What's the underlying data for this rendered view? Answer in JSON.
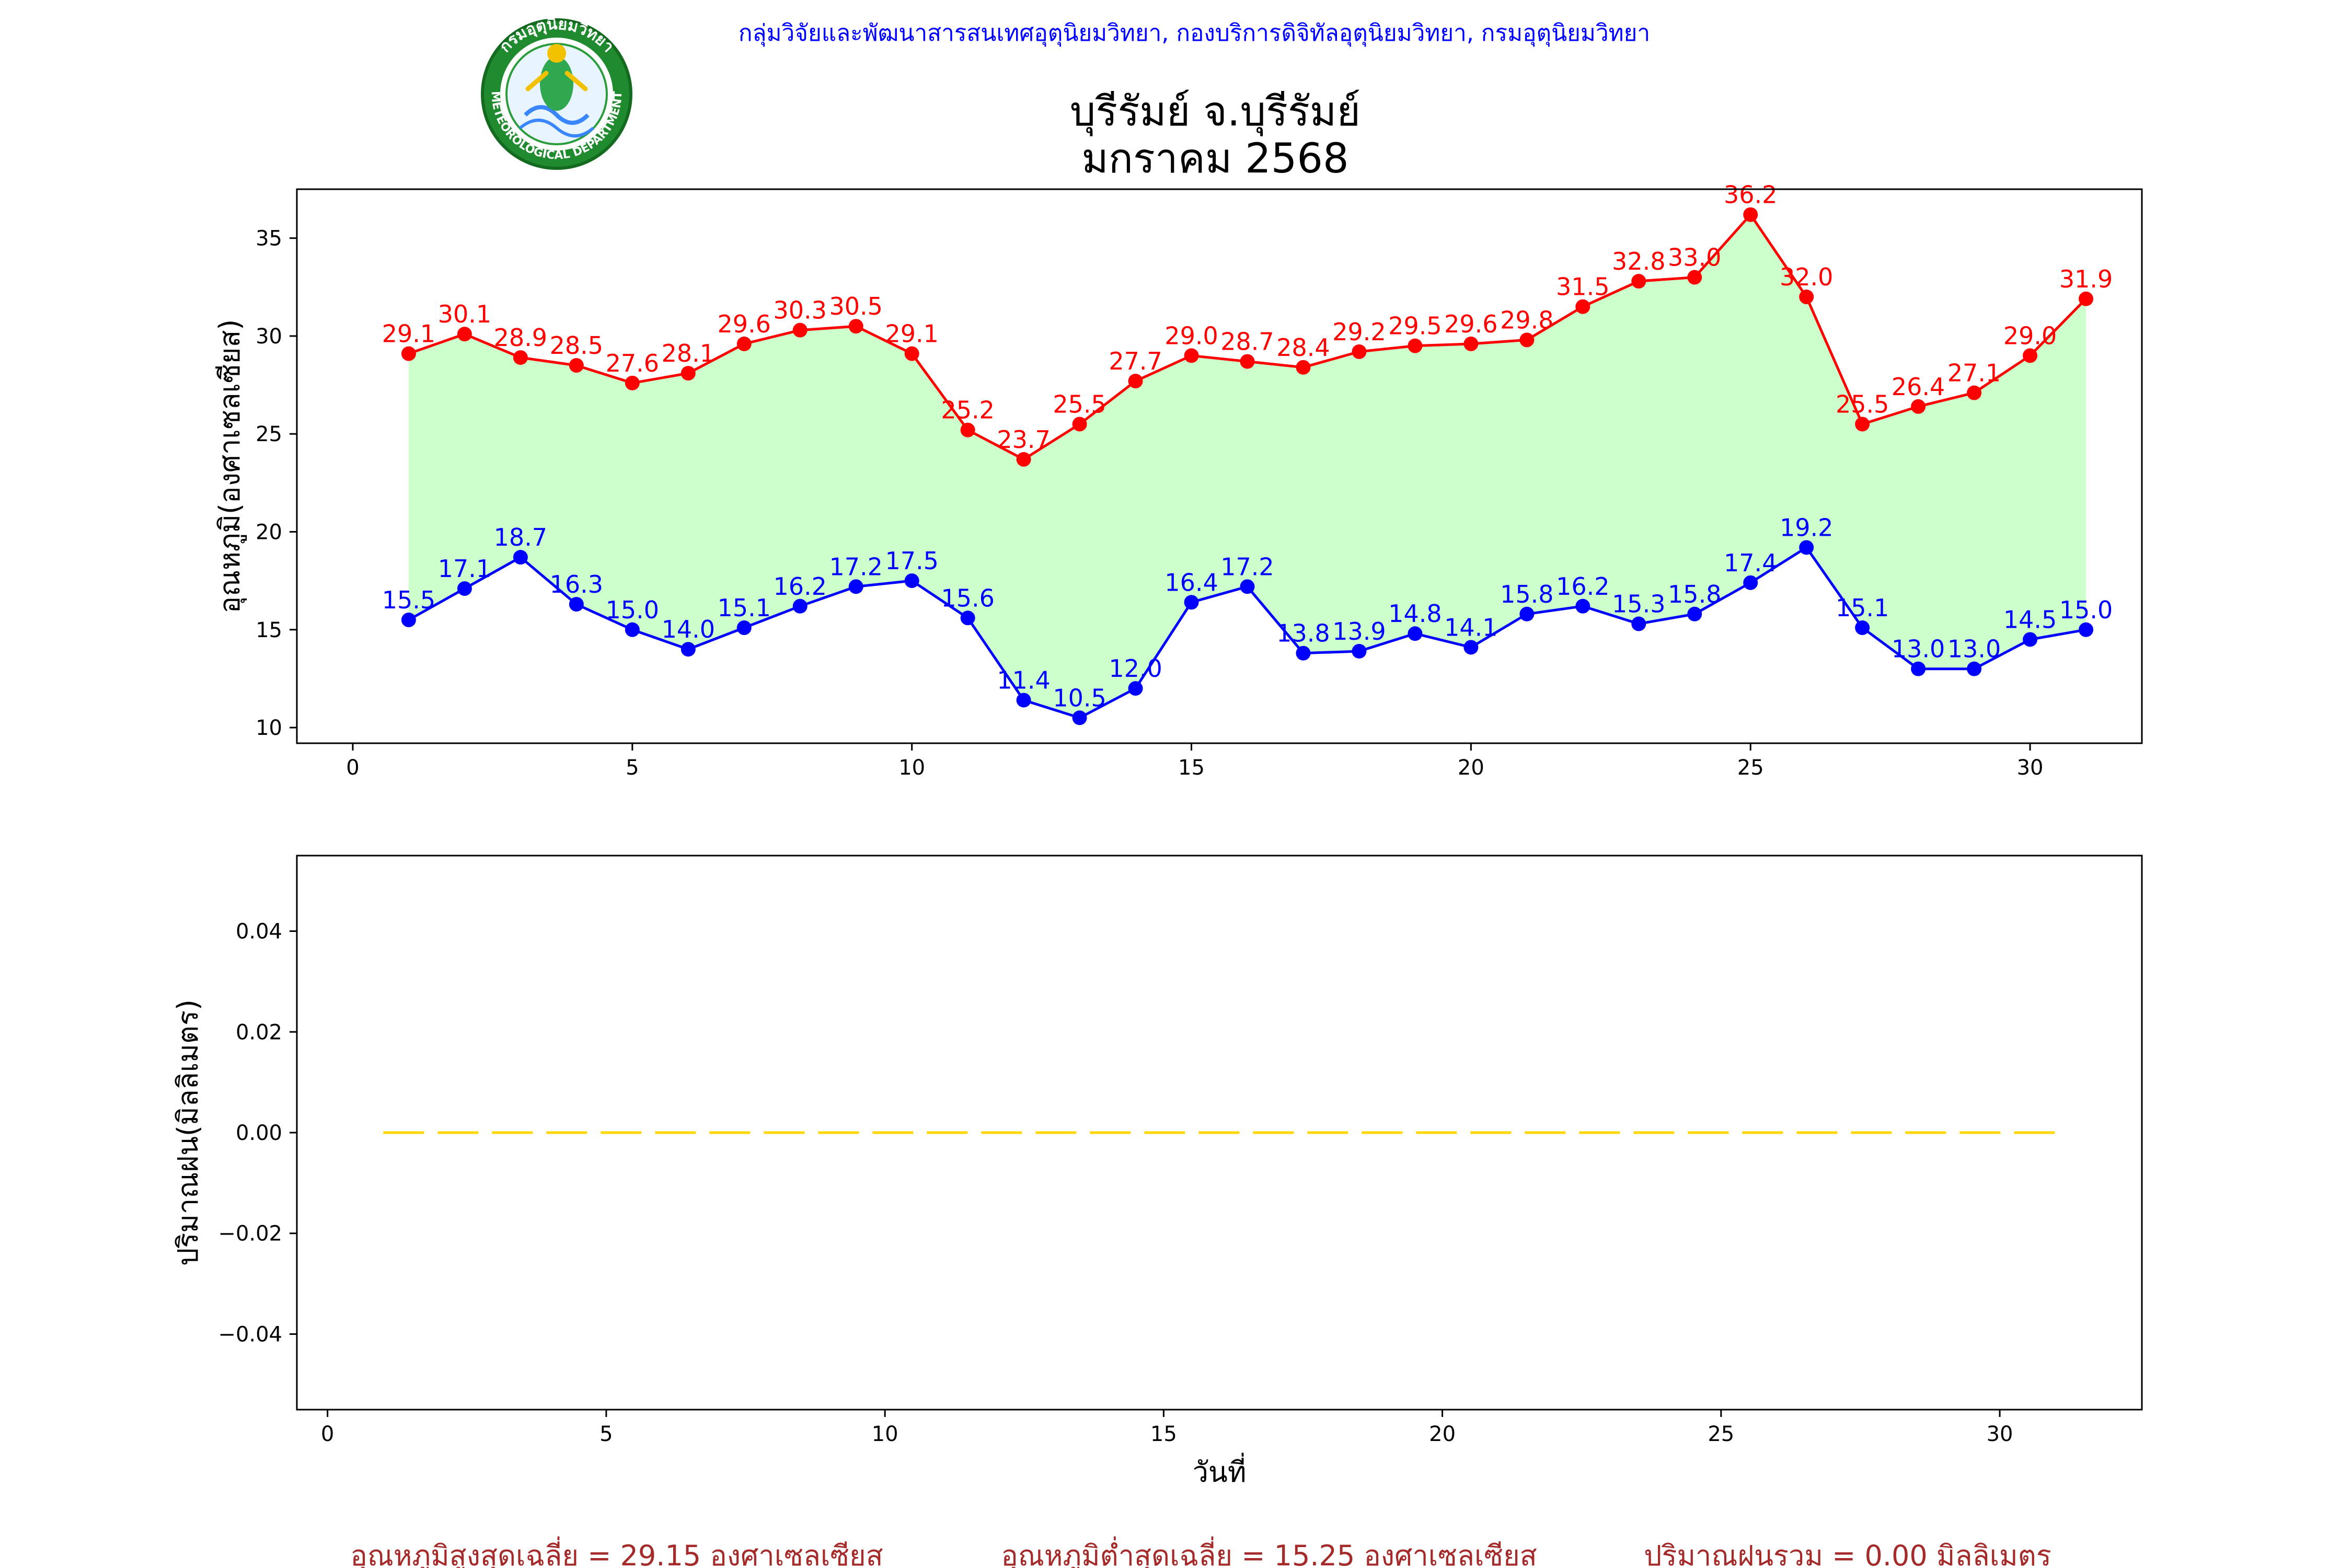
{
  "header": {
    "agency_line": "กลุ่มวิจัยและพัฒนาสารสนเทศอุตุนิยมวิทยา, กองบริการดิจิทัลอุตุนิยมวิทยา, กรมอุตุนิยมวิทยา",
    "title_line1": "บุรีรัมย์ จ.บุรีรัมย์",
    "title_line2": "มกราคม 2568",
    "logo_text_top": "กรมอุตุนิยมวิทยา",
    "logo_text_bottom": "METEOROLOGICAL DEPARTMENT"
  },
  "footer": {
    "avg_max": "อุณหภูมิสูงสุดเฉลี่ย = 29.15 องศาเซลเซียส",
    "avg_min": "อุณหภูมิต่ำสุดเฉลี่ย = 15.25 องศาเซลเซียส",
    "total_rain": "ปริมาณฝนรวม = 0.00 มิลลิเมตร"
  },
  "colors": {
    "max_line": "#ff0000",
    "min_line": "#0000ff",
    "fill": "#ccffcc",
    "rain_line": "#ffd700",
    "agency_text": "#0000ff",
    "footer_text": "#a52a2a"
  },
  "chart_data": [
    {
      "type": "line",
      "ylabel": "อุณหภูมิ(องศาเซลเซียส)",
      "xlabel": "",
      "xlim": [
        -1,
        32
      ],
      "ylim": [
        9.2,
        37.5
      ],
      "xticks": [
        0,
        5,
        10,
        15,
        20,
        25,
        30
      ],
      "yticks": [
        10,
        15,
        20,
        25,
        30,
        35
      ],
      "grid": false,
      "fill_between_series": true,
      "x": [
        1,
        2,
        3,
        4,
        5,
        6,
        7,
        8,
        9,
        10,
        11,
        12,
        13,
        14,
        15,
        16,
        17,
        18,
        19,
        20,
        21,
        22,
        23,
        24,
        25,
        26,
        27,
        28,
        29,
        30,
        31
      ],
      "series": [
        {
          "values": [
            29.1,
            30.1,
            28.9,
            28.5,
            27.6,
            28.1,
            29.6,
            30.3,
            30.5,
            29.1,
            25.2,
            23.7,
            25.5,
            27.7,
            29.0,
            28.7,
            28.4,
            29.2,
            29.5,
            29.6,
            29.8,
            31.5,
            32.8,
            33.0,
            36.2,
            32.0,
            25.5,
            26.4,
            27.1,
            29.0,
            31.9
          ],
          "color": "#ff0000"
        },
        {
          "values": [
            15.5,
            17.1,
            18.7,
            16.3,
            15.0,
            14.0,
            15.1,
            16.2,
            17.2,
            17.5,
            15.6,
            11.4,
            10.5,
            12.0,
            16.4,
            17.2,
            13.8,
            13.9,
            14.8,
            14.1,
            15.8,
            16.2,
            15.3,
            15.8,
            17.4,
            19.2,
            15.1,
            13.0,
            13.0,
            14.5,
            15.0
          ],
          "color": "#0000ff"
        }
      ]
    },
    {
      "type": "line",
      "ylabel": "ปริมาณฝน(มิลลิเมตร)",
      "xlabel": "วันที่",
      "xlim": [
        -0.55,
        32.55
      ],
      "ylim": [
        -0.055,
        0.055
      ],
      "xticks": [
        0,
        5,
        10,
        15,
        20,
        25,
        30
      ],
      "yticks": [
        -0.04,
        -0.02,
        0.0,
        0.02,
        0.04
      ],
      "ytick_labels": [
        "−0.04",
        "−0.02",
        "0.00",
        "0.02",
        "0.04"
      ],
      "grid": false,
      "x": [
        1,
        2,
        3,
        4,
        5,
        6,
        7,
        8,
        9,
        10,
        11,
        12,
        13,
        14,
        15,
        16,
        17,
        18,
        19,
        20,
        21,
        22,
        23,
        24,
        25,
        26,
        27,
        28,
        29,
        30,
        31
      ],
      "series": [
        {
          "values": [
            0,
            0,
            0,
            0,
            0,
            0,
            0,
            0,
            0,
            0,
            0,
            0,
            0,
            0,
            0,
            0,
            0,
            0,
            0,
            0,
            0,
            0,
            0,
            0,
            0,
            0,
            0,
            0,
            0,
            0,
            0
          ],
          "color": "#ffd700",
          "style": "dashed"
        }
      ]
    }
  ]
}
